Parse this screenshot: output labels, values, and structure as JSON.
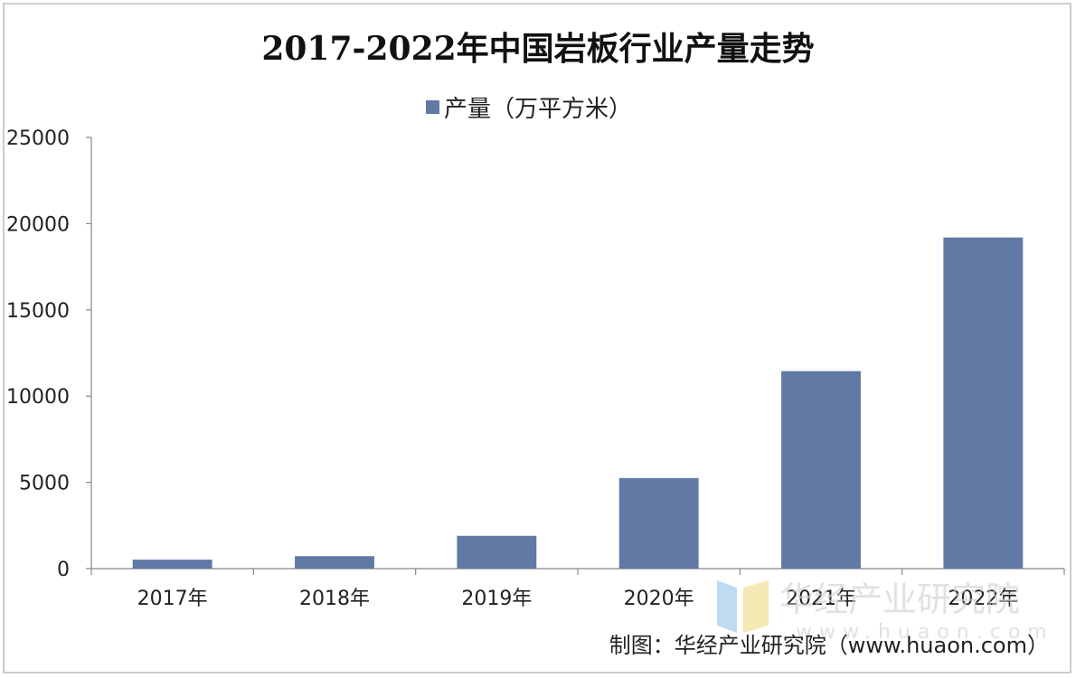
{
  "chart_data": {
    "type": "bar",
    "title": "2017-2022年中国岩板行业产量走势",
    "categories": [
      "2017年",
      "2018年",
      "2019年",
      "2020年",
      "2021年",
      "2022年"
    ],
    "series": [
      {
        "name": "产量（万平方米）",
        "values": [
          520,
          720,
          1900,
          5250,
          11450,
          19200
        ],
        "color": "#6079a5"
      }
    ],
    "ylim": [
      0,
      25000
    ],
    "yticks": [
      0,
      5000,
      10000,
      15000,
      20000,
      25000
    ],
    "grid": false,
    "legend_position": "top-center"
  },
  "credit": "制图：华经产业研究院（www.huaon.com）",
  "watermark": {
    "name": "华经产业研究院",
    "url": "www.huaon.com"
  },
  "colors": {
    "bar": "#6079a5",
    "axis": "#888888",
    "frame_border": "#bbbbbb",
    "text": "#222222"
  }
}
